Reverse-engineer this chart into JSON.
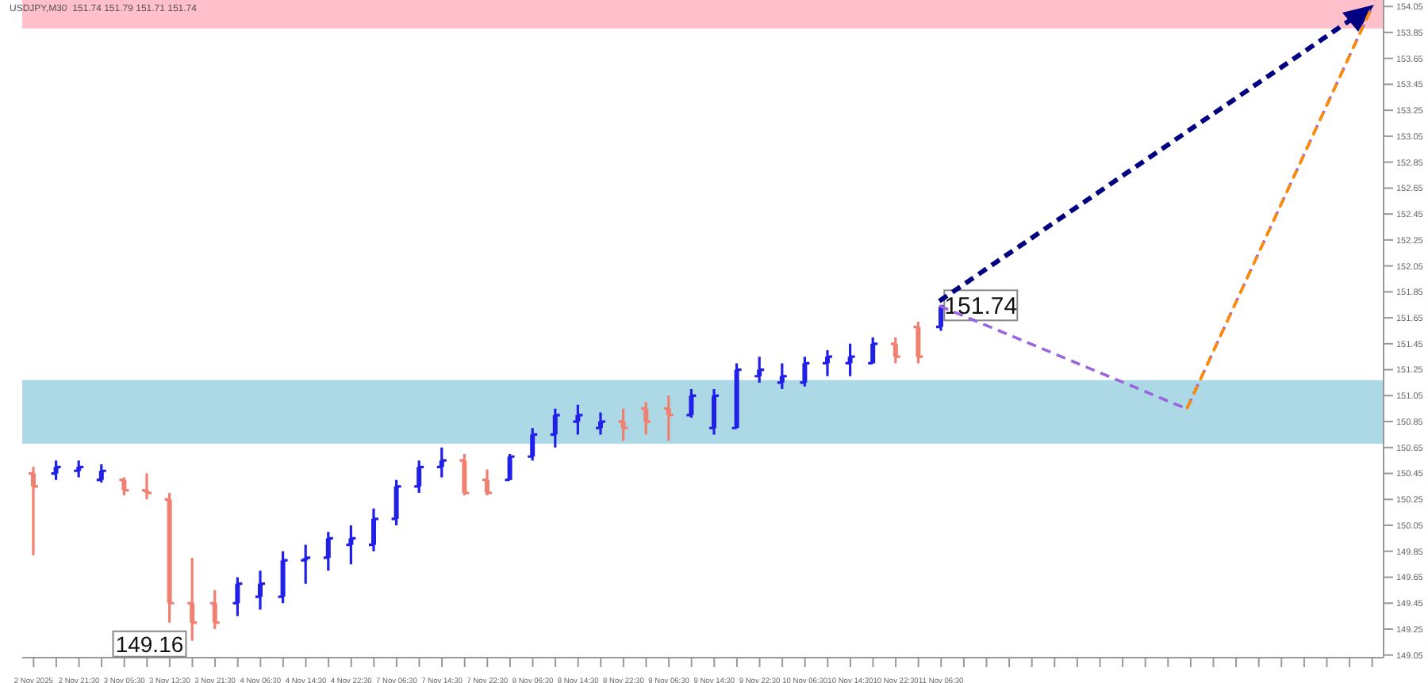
{
  "chart_data": {
    "type": "candlestick",
    "title": "USDJPY,M30  151.74 151.79 151.71 151.74",
    "categories": [
      "2 Nov 2025",
      null,
      "2 Nov 21:30",
      null,
      "3 Nov 05:30",
      null,
      "3 Nov 13:30",
      null,
      "3 Nov 21:30",
      null,
      "4 Nov 06:30",
      null,
      "4 Nov 14:30",
      null,
      "4 Nov 22:30",
      null,
      "7 Nov 06:30",
      null,
      "7 Nov 14:30",
      null,
      "7 Nov 22:30",
      null,
      "8 Nov 06:30",
      null,
      "8 Nov 14:30",
      null,
      "8 Nov 22:30",
      null,
      "9 Nov 06:30",
      null,
      "9 Nov 14:30",
      null,
      "9 Nov 22:30",
      null,
      "10 Nov 06:30",
      null,
      "10 Nov 14:30",
      null,
      "10 Nov 22:30",
      null,
      "11 Nov 06:30",
      null,
      null,
      null,
      null,
      null,
      null,
      null,
      null,
      null,
      null,
      null,
      null,
      null,
      null,
      null,
      null,
      null,
      null,
      null
    ],
    "ohlc": [
      [
        150.45,
        150.5,
        149.82,
        150.35
      ],
      [
        150.45,
        150.55,
        150.4,
        150.5
      ],
      [
        150.47,
        150.55,
        150.42,
        150.5
      ],
      [
        150.4,
        150.52,
        150.38,
        150.47
      ],
      [
        150.4,
        150.42,
        150.28,
        150.32
      ],
      [
        150.32,
        150.45,
        150.25,
        150.3
      ],
      [
        150.25,
        150.3,
        149.3,
        149.45
      ],
      [
        149.45,
        149.8,
        149.16,
        149.3
      ],
      [
        149.45,
        149.55,
        149.25,
        149.3
      ],
      [
        149.45,
        149.65,
        149.35,
        149.6
      ],
      [
        149.5,
        149.7,
        149.4,
        149.6
      ],
      [
        149.5,
        149.85,
        149.45,
        149.78
      ],
      [
        149.78,
        149.9,
        149.6,
        149.8
      ],
      [
        149.8,
        150.0,
        149.7,
        149.95
      ],
      [
        149.9,
        150.05,
        149.75,
        149.95
      ],
      [
        149.9,
        150.18,
        149.85,
        150.1
      ],
      [
        150.1,
        150.4,
        150.05,
        150.35
      ],
      [
        150.35,
        150.55,
        150.3,
        150.5
      ],
      [
        150.5,
        150.65,
        150.42,
        150.55
      ],
      [
        150.55,
        150.6,
        150.28,
        150.3
      ],
      [
        150.4,
        150.48,
        150.28,
        150.3
      ],
      [
        150.4,
        150.6,
        150.4,
        150.58
      ],
      [
        150.58,
        150.8,
        150.55,
        150.75
      ],
      [
        150.75,
        150.95,
        150.65,
        150.9
      ],
      [
        150.85,
        150.98,
        150.75,
        150.9
      ],
      [
        150.8,
        150.92,
        150.75,
        150.85
      ],
      [
        150.85,
        150.95,
        150.7,
        150.8
      ],
      [
        150.95,
        151.0,
        150.75,
        150.85
      ],
      [
        150.95,
        151.05,
        150.7,
        150.9
      ],
      [
        150.9,
        151.1,
        150.88,
        151.05
      ],
      [
        150.8,
        151.1,
        150.75,
        151.05
      ],
      [
        150.8,
        151.3,
        150.8,
        151.25
      ],
      [
        151.2,
        151.35,
        151.15,
        151.25
      ],
      [
        151.15,
        151.3,
        151.1,
        151.2
      ],
      [
        151.15,
        151.35,
        151.12,
        151.3
      ],
      [
        151.3,
        151.4,
        151.2,
        151.35
      ],
      [
        151.3,
        151.45,
        151.2,
        151.35
      ],
      [
        151.3,
        151.5,
        151.3,
        151.45
      ],
      [
        151.45,
        151.5,
        151.3,
        151.35
      ],
      [
        151.58,
        151.62,
        151.3,
        151.35
      ],
      [
        151.58,
        151.74,
        151.55,
        151.74
      ],
      null,
      null,
      null,
      null,
      null,
      null,
      null,
      null,
      null,
      null,
      null,
      null,
      null,
      null,
      null,
      null,
      null,
      null,
      null
    ],
    "colors": [
      "#f08070",
      "#2020e8",
      "#2020e8",
      "#2020e8",
      "#f08070",
      "#f08070",
      "#f08070",
      "#f08070",
      "#f08070",
      "#2020e8",
      "#2020e8",
      "#2020e8",
      "#2020e8",
      "#2020e8",
      "#2020e8",
      "#2020e8",
      "#2020e8",
      "#2020e8",
      "#2020e8",
      "#f08070",
      "#f08070",
      "#2020e8",
      "#2020e8",
      "#2020e8",
      "#2020e8",
      "#2020e8",
      "#f08070",
      "#f08070",
      "#f08070",
      "#2020e8",
      "#2020e8",
      "#2020e8",
      "#2020e8",
      "#2020e8",
      "#2020e8",
      "#2020e8",
      "#2020e8",
      "#2020e8",
      "#f08070",
      "#f08070",
      "#2020e8",
      null,
      null,
      null,
      null,
      null,
      null,
      null,
      null,
      null,
      null,
      null,
      null,
      null,
      null,
      null,
      null,
      null,
      null,
      null
    ],
    "bands": [
      {
        "axis": "y",
        "from": 153.88,
        "to": 154.1,
        "color": "#ffc0cb"
      },
      {
        "axis": "y",
        "from": 150.68,
        "to": 151.17,
        "color": "#add8e6"
      }
    ],
    "annotations": [
      "149.16",
      "151.74"
    ],
    "ylim": [
      149.03,
      154.1
    ],
    "yticks": [
      149.05,
      149.25,
      149.45,
      149.65,
      149.85,
      150.05,
      150.25,
      150.45,
      150.65,
      150.85,
      151.05,
      151.25,
      151.45,
      151.65,
      151.85,
      152.05,
      152.25,
      152.45,
      152.65,
      152.85,
      153.05,
      153.25,
      153.45,
      153.65,
      153.85,
      154.05
    ],
    "grid": false,
    "legend": false
  }
}
